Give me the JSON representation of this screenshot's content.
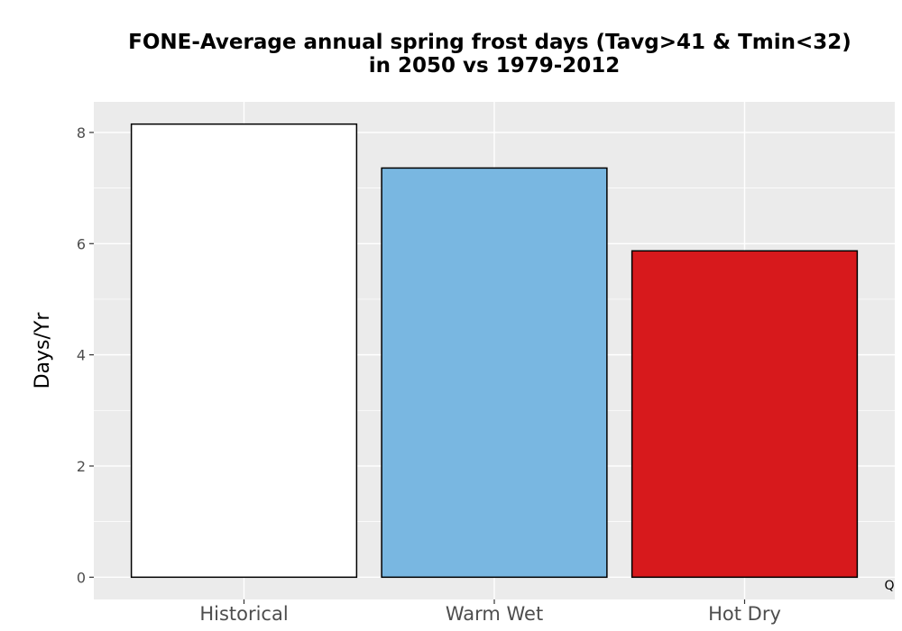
{
  "chart_data": {
    "type": "bar",
    "title_lines": [
      "FONE-Average annual spring frost days (Tavg>41 & Tmin<32)",
      "in 2050 vs 1979-2012"
    ],
    "xlabel": "",
    "ylabel": "Days/Yr",
    "categories": [
      "Historical",
      "Warm Wet",
      "Hot Dry"
    ],
    "values": [
      8.15,
      7.36,
      5.87
    ],
    "bar_colors": [
      "#ffffff",
      "#79b7e1",
      "#d7191c"
    ],
    "bar_outline_color": "#000000",
    "ylim": [
      -0.4,
      8.55
    ],
    "yticks": [
      0,
      2,
      4,
      6,
      8
    ],
    "grid": true,
    "panel_background": "#ebebeb",
    "grid_color": "#ffffff",
    "corner_mark": "Q"
  }
}
